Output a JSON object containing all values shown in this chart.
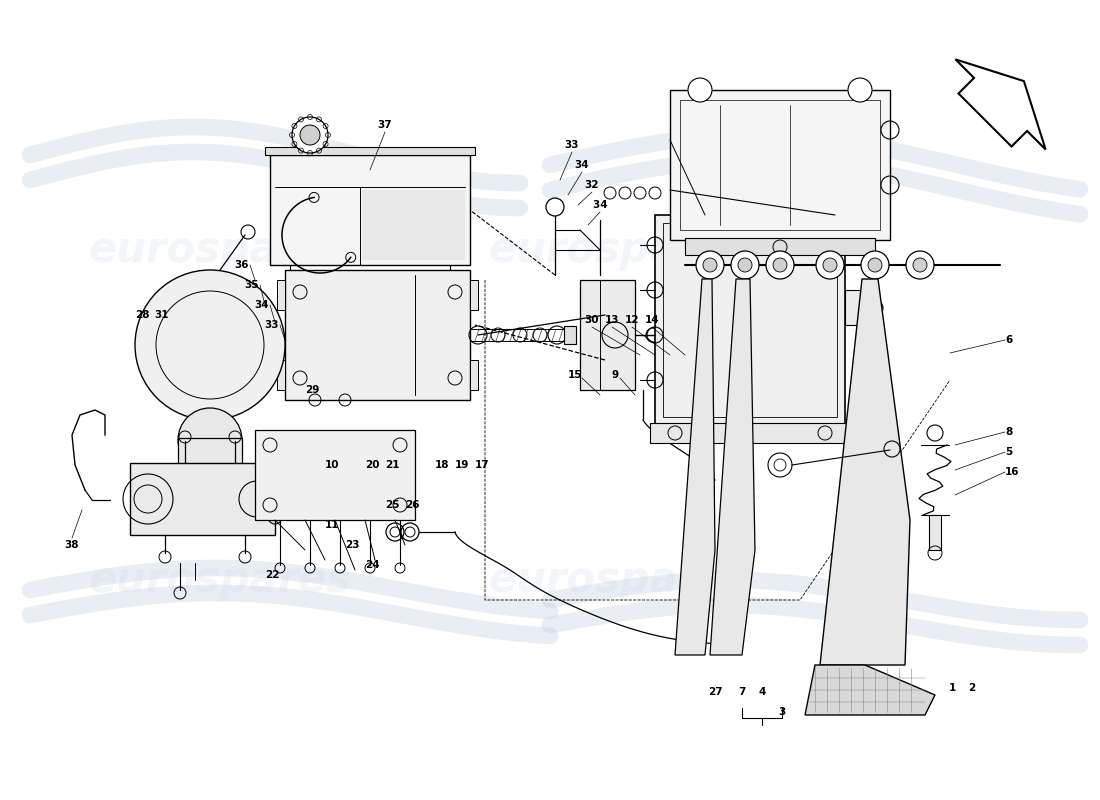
{
  "bg_color": "#ffffff",
  "line_color": "#000000",
  "fig_width": 11.0,
  "fig_height": 8.0,
  "dpi": 100,
  "watermark_text": "eurospares",
  "watermark_color": "#c8d4e8",
  "watermark_alpha": 0.22,
  "watermark_fontsize": 30,
  "label_fontsize": 7.5,
  "swash_color": "#c0cfe0",
  "swash_alpha": 0.35,
  "swash_lw": 12
}
